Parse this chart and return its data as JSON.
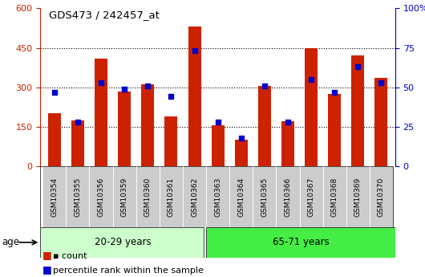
{
  "title": "GDS473 / 242457_at",
  "samples": [
    "GSM10354",
    "GSM10355",
    "GSM10356",
    "GSM10359",
    "GSM10360",
    "GSM10361",
    "GSM10362",
    "GSM10363",
    "GSM10364",
    "GSM10365",
    "GSM10366",
    "GSM10367",
    "GSM10368",
    "GSM10369",
    "GSM10370"
  ],
  "counts": [
    200,
    175,
    410,
    285,
    310,
    190,
    530,
    155,
    100,
    305,
    170,
    450,
    275,
    420,
    335
  ],
  "percentile_ranks": [
    47,
    28,
    53,
    49,
    51,
    44,
    73,
    28,
    18,
    51,
    28,
    55,
    47,
    63,
    53
  ],
  "group1_label": "20-29 years",
  "group2_label": "65-71 years",
  "group1_count": 7,
  "group2_count": 8,
  "left_ylim": [
    0,
    600
  ],
  "right_ylim": [
    0,
    100
  ],
  "left_yticks": [
    0,
    150,
    300,
    450,
    600
  ],
  "right_yticks": [
    0,
    25,
    50,
    75,
    100
  ],
  "bar_color": "#cc2200",
  "dot_color": "#0000cc",
  "group1_bg": "#ccffcc",
  "group2_bg": "#44ee44",
  "tick_bg": "#cccccc",
  "legend_count_label": "count",
  "legend_pct_label": "percentile rank within the sample",
  "age_label": "age"
}
